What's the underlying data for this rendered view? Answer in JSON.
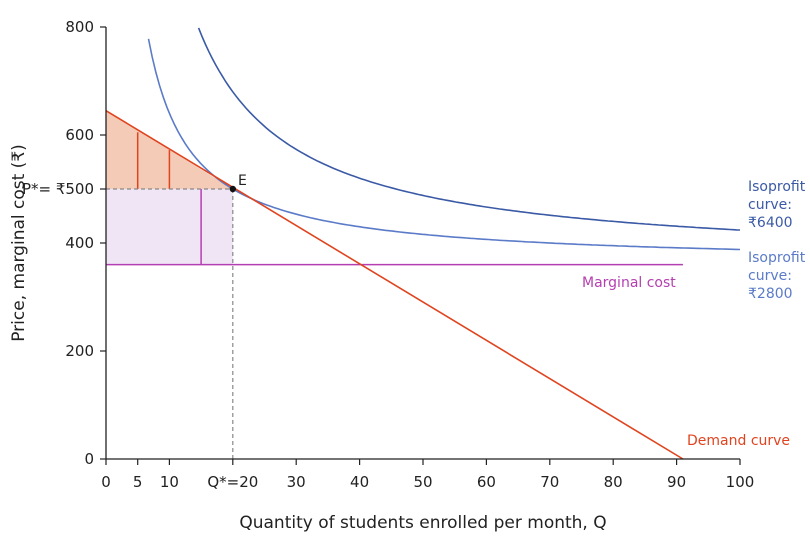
{
  "colors": {
    "demand": "#e0441f",
    "consumer_surplus_fill": "#f3cbb7",
    "isoprofit_high": "#3b5aa6",
    "isoprofit_low": "#5b7bc8",
    "marginal_cost": "#b43fb0",
    "producer_surplus_fill": "#efe5f5",
    "axis": "#222222",
    "guide": "#888888"
  },
  "chart_data": {
    "type": "line",
    "title": "",
    "xlabel": "Quantity of students enrolled per month, Q",
    "ylabel": "Price, marginal cost (₹)",
    "xlim": [
      0,
      100
    ],
    "ylim": [
      0,
      800
    ],
    "x_ticks": [
      {
        "value": 0,
        "label": "0"
      },
      {
        "value": 5,
        "label": "5"
      },
      {
        "value": 10,
        "label": "10"
      },
      {
        "value": 20,
        "label": "Q*=20"
      },
      {
        "value": 30,
        "label": "30"
      },
      {
        "value": 40,
        "label": "40"
      },
      {
        "value": 50,
        "label": "50"
      },
      {
        "value": 60,
        "label": "60"
      },
      {
        "value": 70,
        "label": "70"
      },
      {
        "value": 80,
        "label": "80"
      },
      {
        "value": 90,
        "label": "90"
      },
      {
        "value": 100,
        "label": "100"
      }
    ],
    "y_ticks": [
      {
        "value": 0,
        "label": "0"
      },
      {
        "value": 200,
        "label": "200"
      },
      {
        "value": 400,
        "label": "400"
      },
      {
        "value": 500,
        "label": "P*= ₹500"
      },
      {
        "value": 600,
        "label": "600"
      },
      {
        "value": 800,
        "label": "800"
      }
    ],
    "series": [
      {
        "name": "Demand curve",
        "kind": "line",
        "points": [
          [
            0,
            645
          ],
          [
            91,
            0
          ]
        ]
      },
      {
        "name": "Marginal cost",
        "kind": "line",
        "points": [
          [
            0,
            360
          ],
          [
            91,
            360
          ]
        ]
      },
      {
        "name": "Isoprofit curve: ₹2800",
        "kind": "isoprofit",
        "mc": 360,
        "profit": 2800,
        "x_range": [
          6.7,
          100
        ]
      },
      {
        "name": "Isoprofit curve: ₹6400",
        "kind": "isoprofit",
        "mc": 360,
        "profit": 6400,
        "x_range": [
          14.6,
          100
        ]
      }
    ],
    "equilibrium": {
      "label": "E",
      "x": 20,
      "y": 500
    },
    "consumer_surplus_verticals": [
      {
        "x": 5,
        "y_top": 605
      },
      {
        "x": 10,
        "y_top": 572
      }
    ],
    "producer_surplus_vertical": {
      "x": 15,
      "y_top": 500
    },
    "annotations": {
      "demand": "Demand curve",
      "marginal_cost": "Marginal cost",
      "isoprofit_high": [
        "Isoprofit",
        "curve:",
        "₹6400"
      ],
      "isoprofit_low": [
        "Isoprofit",
        "curve:",
        "₹2800"
      ],
      "point": "E"
    }
  }
}
